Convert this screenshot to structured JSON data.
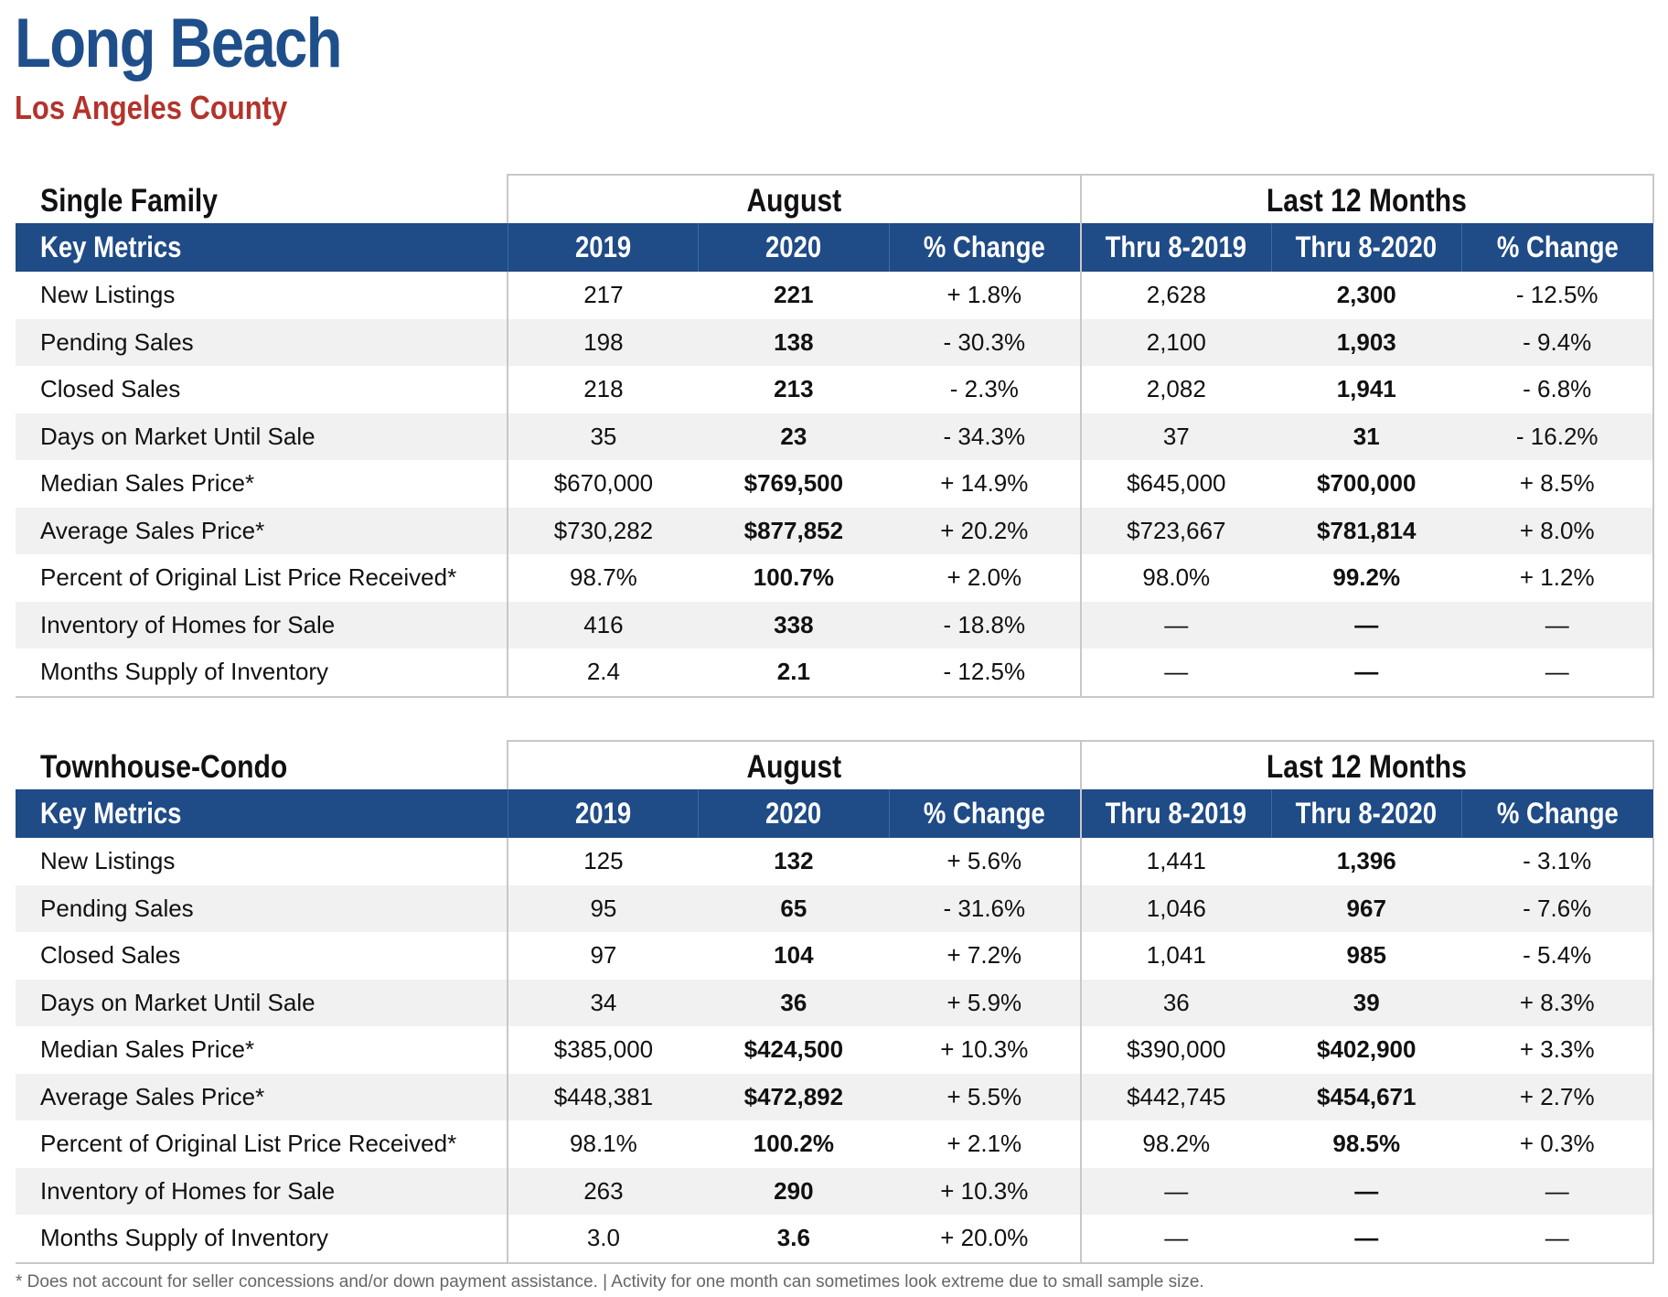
{
  "title": "Long Beach",
  "subtitle": "Los Angeles County",
  "sections": [
    {
      "label": "Single Family",
      "group_month": "August",
      "group_rolling": "Last 12 Months",
      "headers": [
        "Key Metrics",
        "2019",
        "2020",
        "% Change",
        "Thru 8-2019",
        "Thru 8-2020",
        "% Change"
      ],
      "rows": [
        [
          "New Listings",
          "217",
          "221",
          "+ 1.8%",
          "2,628",
          "2,300",
          "- 12.5%"
        ],
        [
          "Pending Sales",
          "198",
          "138",
          "- 30.3%",
          "2,100",
          "1,903",
          "- 9.4%"
        ],
        [
          "Closed Sales",
          "218",
          "213",
          "- 2.3%",
          "2,082",
          "1,941",
          "- 6.8%"
        ],
        [
          "Days on Market Until Sale",
          "35",
          "23",
          "- 34.3%",
          "37",
          "31",
          "- 16.2%"
        ],
        [
          "Median Sales Price*",
          "$670,000",
          "$769,500",
          "+ 14.9%",
          "$645,000",
          "$700,000",
          "+ 8.5%"
        ],
        [
          "Average Sales Price*",
          "$730,282",
          "$877,852",
          "+ 20.2%",
          "$723,667",
          "$781,814",
          "+ 8.0%"
        ],
        [
          "Percent of Original List Price Received*",
          "98.7%",
          "100.7%",
          "+ 2.0%",
          "98.0%",
          "99.2%",
          "+ 1.2%"
        ],
        [
          "Inventory of Homes for Sale",
          "416",
          "338",
          "- 18.8%",
          "—",
          "—",
          "—"
        ],
        [
          "Months Supply of Inventory",
          "2.4",
          "2.1",
          "- 12.5%",
          "—",
          "—",
          "—"
        ]
      ]
    },
    {
      "label": "Townhouse-Condo",
      "group_month": "August",
      "group_rolling": "Last 12 Months",
      "headers": [
        "Key Metrics",
        "2019",
        "2020",
        "% Change",
        "Thru 8-2019",
        "Thru 8-2020",
        "% Change"
      ],
      "rows": [
        [
          "New Listings",
          "125",
          "132",
          "+ 5.6%",
          "1,441",
          "1,396",
          "- 3.1%"
        ],
        [
          "Pending Sales",
          "95",
          "65",
          "- 31.6%",
          "1,046",
          "967",
          "- 7.6%"
        ],
        [
          "Closed Sales",
          "97",
          "104",
          "+ 7.2%",
          "1,041",
          "985",
          "- 5.4%"
        ],
        [
          "Days on Market Until Sale",
          "34",
          "36",
          "+ 5.9%",
          "36",
          "39",
          "+ 8.3%"
        ],
        [
          "Median Sales Price*",
          "$385,000",
          "$424,500",
          "+ 10.3%",
          "$390,000",
          "$402,900",
          "+ 3.3%"
        ],
        [
          "Average Sales Price*",
          "$448,381",
          "$472,892",
          "+ 5.5%",
          "$442,745",
          "$454,671",
          "+ 2.7%"
        ],
        [
          "Percent of Original List Price Received*",
          "98.1%",
          "100.2%",
          "+ 2.1%",
          "98.2%",
          "98.5%",
          "+ 0.3%"
        ],
        [
          "Inventory of Homes for Sale",
          "263",
          "290",
          "+ 10.3%",
          "—",
          "—",
          "—"
        ],
        [
          "Months Supply of Inventory",
          "3.0",
          "3.6",
          "+ 20.0%",
          "—",
          "—",
          "—"
        ]
      ]
    }
  ],
  "footnote": "* Does not account for seller concessions and/or down payment assistance. | Activity for one month can sometimes look extreme due to small sample size.",
  "colors": {
    "title": "#1f4f8b",
    "subtitle": "#b3332b",
    "header_bg": "#1f4b87",
    "row_shade": "#f1f1f1",
    "border": "#c8c8c8"
  }
}
